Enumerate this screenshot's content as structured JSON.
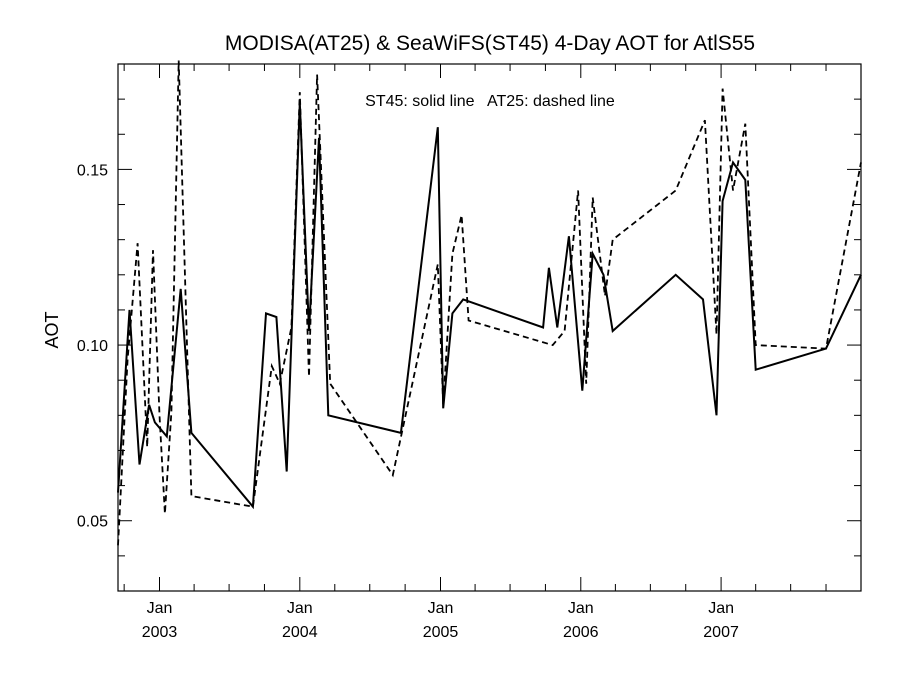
{
  "chart_data": {
    "type": "line",
    "title": "MODISA(AT25) & SeaWiFS(ST45) 4-Day AOT for AtlS55",
    "annotation": "ST45: solid line   AT25: dashed line",
    "ylabel": "AOT",
    "xlabel": "",
    "ylim": [
      0.03,
      0.18
    ],
    "xlim": [
      "2002-09-15",
      "2007-12-31"
    ],
    "yticks": [
      {
        "value": 0.05,
        "label": "0.05"
      },
      {
        "value": 0.1,
        "label": "0.10"
      },
      {
        "value": 0.15,
        "label": "0.15"
      }
    ],
    "xticks": [
      {
        "date": "2003-01-01",
        "month": "Jan",
        "year": "2003"
      },
      {
        "date": "2004-01-01",
        "month": "Jan",
        "year": "2004"
      },
      {
        "date": "2005-01-01",
        "month": "Jan",
        "year": "2005"
      },
      {
        "date": "2006-01-01",
        "month": "Jan",
        "year": "2006"
      },
      {
        "date": "2007-01-01",
        "month": "Jan",
        "year": "2007"
      }
    ],
    "grid": false,
    "series": [
      {
        "name": "ST45",
        "style": "solid",
        "color": "#000000",
        "points": [
          [
            "2002-09-15",
            0.058
          ],
          [
            "2002-10-15",
            0.11
          ],
          [
            "2002-11-10",
            0.066
          ],
          [
            "2002-12-05",
            0.083
          ],
          [
            "2002-12-20",
            0.078
          ],
          [
            "2003-01-20",
            0.074
          ],
          [
            "2003-02-25",
            0.116
          ],
          [
            "2003-03-25",
            0.075
          ],
          [
            "2003-09-01",
            0.054
          ],
          [
            "2003-10-05",
            0.109
          ],
          [
            "2003-11-01",
            0.108
          ],
          [
            "2003-11-28",
            0.064
          ],
          [
            "2004-01-01",
            0.169
          ],
          [
            "2004-01-25",
            0.104
          ],
          [
            "2004-02-20",
            0.159
          ],
          [
            "2004-03-15",
            0.08
          ],
          [
            "2004-09-20",
            0.075
          ],
          [
            "2004-12-25",
            0.162
          ],
          [
            "2005-01-08",
            0.082
          ],
          [
            "2005-02-01",
            0.109
          ],
          [
            "2005-03-01",
            0.113
          ],
          [
            "2005-09-25",
            0.105
          ],
          [
            "2005-10-10",
            0.122
          ],
          [
            "2005-11-01",
            0.105
          ],
          [
            "2005-12-01",
            0.131
          ],
          [
            "2006-01-05",
            0.087
          ],
          [
            "2006-02-01",
            0.126
          ],
          [
            "2006-03-01",
            0.12
          ],
          [
            "2006-03-25",
            0.104
          ],
          [
            "2006-09-05",
            0.12
          ],
          [
            "2006-11-15",
            0.113
          ],
          [
            "2006-12-20",
            0.08
          ],
          [
            "2007-01-05",
            0.141
          ],
          [
            "2007-02-01",
            0.152
          ],
          [
            "2007-03-05",
            0.147
          ],
          [
            "2007-04-01",
            0.093
          ],
          [
            "2007-10-01",
            0.099
          ],
          [
            "2007-12-31",
            0.12
          ]
        ]
      },
      {
        "name": "AT25",
        "style": "dashed",
        "color": "#000000",
        "points": [
          [
            "2002-09-15",
            0.043
          ],
          [
            "2002-10-10",
            0.096
          ],
          [
            "2002-11-05",
            0.129
          ],
          [
            "2002-11-30",
            0.071
          ],
          [
            "2002-12-15",
            0.127
          ],
          [
            "2003-01-01",
            0.08
          ],
          [
            "2003-01-15",
            0.052
          ],
          [
            "2003-02-01",
            0.081
          ],
          [
            "2003-02-20",
            0.181
          ],
          [
            "2003-03-25",
            0.057
          ],
          [
            "2003-09-01",
            0.054
          ],
          [
            "2003-10-20",
            0.094
          ],
          [
            "2003-11-10",
            0.089
          ],
          [
            "2003-12-10",
            0.105
          ],
          [
            "2004-01-01",
            0.172
          ],
          [
            "2004-01-25",
            0.091
          ],
          [
            "2004-02-15",
            0.177
          ],
          [
            "2004-03-20",
            0.089
          ],
          [
            "2004-08-30",
            0.063
          ],
          [
            "2004-12-25",
            0.123
          ],
          [
            "2005-01-08",
            0.083
          ],
          [
            "2005-02-01",
            0.126
          ],
          [
            "2005-02-25",
            0.137
          ],
          [
            "2005-03-15",
            0.107
          ],
          [
            "2005-10-20",
            0.1
          ],
          [
            "2005-11-20",
            0.104
          ],
          [
            "2005-12-25",
            0.144
          ],
          [
            "2006-01-15",
            0.089
          ],
          [
            "2006-02-01",
            0.142
          ],
          [
            "2006-03-05",
            0.114
          ],
          [
            "2006-03-25",
            0.13
          ],
          [
            "2006-09-05",
            0.144
          ],
          [
            "2006-11-20",
            0.164
          ],
          [
            "2006-12-20",
            0.103
          ],
          [
            "2007-01-05",
            0.173
          ],
          [
            "2007-02-01",
            0.144
          ],
          [
            "2007-03-05",
            0.163
          ],
          [
            "2007-04-01",
            0.1
          ],
          [
            "2007-10-01",
            0.099
          ],
          [
            "2007-12-31",
            0.152
          ]
        ]
      }
    ]
  }
}
